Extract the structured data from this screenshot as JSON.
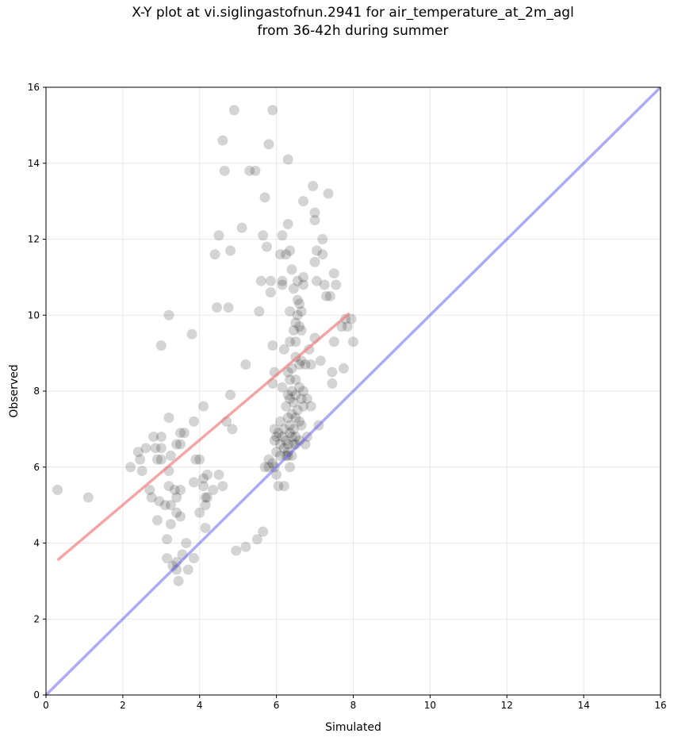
{
  "chart_data": {
    "type": "scatter",
    "title_line1": "X-Y plot at vi.siglingastofnun.2941 for air_temperature_at_2m_agl",
    "title_line2": "from 36-42h during summer",
    "xlabel": "Simulated",
    "ylabel": "Observed",
    "xlim": [
      0,
      16
    ],
    "ylim": [
      0,
      16
    ],
    "xticks": [
      0,
      2,
      4,
      6,
      8,
      10,
      12,
      14,
      16
    ],
    "yticks": [
      0,
      2,
      4,
      6,
      8,
      10,
      12,
      14,
      16
    ],
    "grid": true,
    "colors": {
      "points": "#000000",
      "fit_line": "#f08080",
      "identity_line": "#6666ee",
      "grid": "#d9d9d9"
    },
    "fit_line": {
      "x": [
        0.3,
        7.9
      ],
      "y": [
        3.55,
        10.05
      ]
    },
    "identity_line": {
      "x": [
        0,
        16
      ],
      "y": [
        0,
        16
      ]
    },
    "points": [
      [
        0.3,
        5.4
      ],
      [
        1.1,
        5.2
      ],
      [
        2.2,
        6.0
      ],
      [
        2.4,
        6.4
      ],
      [
        2.45,
        6.2
      ],
      [
        2.5,
        5.9
      ],
      [
        2.6,
        6.5
      ],
      [
        2.7,
        5.4
      ],
      [
        2.75,
        5.2
      ],
      [
        2.8,
        6.8
      ],
      [
        2.85,
        6.5
      ],
      [
        2.9,
        6.2
      ],
      [
        2.9,
        4.6
      ],
      [
        2.95,
        5.1
      ],
      [
        3.0,
        6.8
      ],
      [
        3.0,
        6.5
      ],
      [
        3.0,
        6.2
      ],
      [
        3.0,
        9.2
      ],
      [
        3.1,
        5.0
      ],
      [
        3.15,
        4.1
      ],
      [
        3.15,
        3.6
      ],
      [
        3.2,
        5.5
      ],
      [
        3.2,
        10.0
      ],
      [
        3.2,
        7.3
      ],
      [
        3.2,
        5.9
      ],
      [
        3.25,
        6.3
      ],
      [
        3.25,
        5.0
      ],
      [
        3.25,
        4.5
      ],
      [
        3.3,
        3.4
      ],
      [
        3.35,
        5.4
      ],
      [
        3.4,
        5.2
      ],
      [
        3.4,
        6.6
      ],
      [
        3.4,
        4.8
      ],
      [
        3.4,
        3.5
      ],
      [
        3.4,
        3.3
      ],
      [
        3.45,
        3.0
      ],
      [
        3.5,
        6.9
      ],
      [
        3.5,
        6.6
      ],
      [
        3.5,
        5.4
      ],
      [
        3.5,
        4.7
      ],
      [
        3.55,
        3.7
      ],
      [
        3.6,
        6.9
      ],
      [
        3.65,
        4.0
      ],
      [
        3.7,
        3.3
      ],
      [
        3.8,
        9.5
      ],
      [
        3.85,
        7.2
      ],
      [
        3.85,
        5.6
      ],
      [
        3.85,
        3.6
      ],
      [
        3.9,
        6.2
      ],
      [
        4.0,
        6.2
      ],
      [
        4.0,
        4.8
      ],
      [
        4.1,
        7.6
      ],
      [
        4.1,
        5.7
      ],
      [
        4.1,
        5.5
      ],
      [
        4.15,
        5.2
      ],
      [
        4.15,
        5.0
      ],
      [
        4.15,
        4.4
      ],
      [
        4.2,
        5.8
      ],
      [
        4.2,
        5.2
      ],
      [
        4.35,
        5.4
      ],
      [
        4.4,
        11.6
      ],
      [
        4.45,
        10.2
      ],
      [
        4.5,
        12.1
      ],
      [
        4.5,
        5.8
      ],
      [
        4.6,
        5.5
      ],
      [
        4.6,
        14.6
      ],
      [
        4.65,
        13.8
      ],
      [
        4.7,
        7.2
      ],
      [
        4.75,
        10.2
      ],
      [
        4.8,
        11.7
      ],
      [
        4.8,
        7.9
      ],
      [
        4.85,
        7.0
      ],
      [
        4.9,
        15.4
      ],
      [
        4.95,
        3.8
      ],
      [
        5.1,
        12.3
      ],
      [
        5.2,
        8.7
      ],
      [
        5.2,
        3.9
      ],
      [
        5.3,
        13.8
      ],
      [
        5.45,
        13.8
      ],
      [
        5.5,
        4.1
      ],
      [
        5.55,
        10.1
      ],
      [
        5.6,
        10.9
      ],
      [
        5.65,
        4.3
      ],
      [
        5.65,
        12.1
      ],
      [
        5.7,
        13.1
      ],
      [
        5.7,
        6.0
      ],
      [
        5.75,
        11.8
      ],
      [
        5.8,
        14.5
      ],
      [
        5.8,
        6.2
      ],
      [
        5.8,
        6.0
      ],
      [
        5.85,
        10.9
      ],
      [
        5.85,
        10.6
      ],
      [
        5.9,
        15.4
      ],
      [
        5.9,
        9.2
      ],
      [
        5.9,
        8.2
      ],
      [
        5.95,
        8.5
      ],
      [
        5.95,
        7.0
      ],
      [
        5.95,
        6.7
      ],
      [
        5.95,
        6.0
      ],
      [
        6.0,
        6.8
      ],
      [
        6.0,
        5.8
      ],
      [
        6.05,
        6.9
      ],
      [
        6.05,
        5.5
      ],
      [
        6.1,
        11.6
      ],
      [
        6.1,
        7.2
      ],
      [
        6.1,
        6.6
      ],
      [
        6.1,
        6.3
      ],
      [
        6.15,
        12.1
      ],
      [
        6.15,
        10.9
      ],
      [
        6.15,
        10.8
      ],
      [
        6.15,
        8.1
      ],
      [
        6.15,
        6.8
      ],
      [
        6.2,
        9.1
      ],
      [
        6.2,
        7.0
      ],
      [
        6.2,
        6.5
      ],
      [
        6.2,
        5.5
      ],
      [
        6.25,
        11.6
      ],
      [
        6.25,
        7.6
      ],
      [
        6.25,
        6.7
      ],
      [
        6.25,
        6.3
      ],
      [
        6.3,
        14.1
      ],
      [
        6.3,
        12.4
      ],
      [
        6.3,
        8.5
      ],
      [
        6.3,
        7.9
      ],
      [
        6.3,
        7.3
      ],
      [
        6.3,
        6.6
      ],
      [
        6.3,
        6.4
      ],
      [
        6.3,
        6.3
      ],
      [
        6.35,
        11.7
      ],
      [
        6.35,
        10.1
      ],
      [
        6.35,
        9.3
      ],
      [
        6.35,
        8.3
      ],
      [
        6.35,
        7.8
      ],
      [
        6.35,
        7.1
      ],
      [
        6.35,
        6.9
      ],
      [
        6.35,
        6.0
      ],
      [
        6.4,
        11.2
      ],
      [
        6.4,
        8.6
      ],
      [
        6.4,
        8.0
      ],
      [
        6.4,
        7.4
      ],
      [
        6.4,
        6.8
      ],
      [
        6.4,
        6.3
      ],
      [
        6.45,
        10.7
      ],
      [
        6.45,
        9.6
      ],
      [
        6.45,
        7.7
      ],
      [
        6.45,
        7.0
      ],
      [
        6.45,
        6.6
      ],
      [
        6.5,
        9.8
      ],
      [
        6.5,
        9.3
      ],
      [
        6.5,
        8.9
      ],
      [
        6.5,
        8.3
      ],
      [
        6.5,
        7.9
      ],
      [
        6.5,
        7.3
      ],
      [
        6.5,
        6.8
      ],
      [
        6.5,
        6.6
      ],
      [
        6.55,
        10.9
      ],
      [
        6.55,
        10.4
      ],
      [
        6.55,
        7.5
      ],
      [
        6.6,
        10.3
      ],
      [
        6.6,
        9.7
      ],
      [
        6.6,
        8.1
      ],
      [
        6.6,
        7.2
      ],
      [
        6.6,
        6.7
      ],
      [
        6.65,
        10.1
      ],
      [
        6.65,
        9.6
      ],
      [
        6.65,
        8.8
      ],
      [
        6.65,
        7.8
      ],
      [
        6.65,
        7.1
      ],
      [
        6.7,
        13.0
      ],
      [
        6.7,
        10.8
      ],
      [
        6.7,
        8.0
      ],
      [
        6.7,
        7.6
      ],
      [
        6.75,
        8.7
      ],
      [
        6.75,
        6.6
      ],
      [
        6.8,
        7.8
      ],
      [
        6.8,
        6.8
      ],
      [
        6.85,
        9.1
      ],
      [
        6.9,
        8.7
      ],
      [
        6.9,
        7.6
      ],
      [
        6.95,
        13.4
      ],
      [
        7.0,
        12.7
      ],
      [
        7.0,
        12.5
      ],
      [
        7.0,
        11.4
      ],
      [
        7.0,
        9.4
      ],
      [
        7.05,
        10.9
      ],
      [
        7.05,
        11.7
      ],
      [
        7.1,
        7.1
      ],
      [
        7.15,
        8.8
      ],
      [
        7.2,
        12.0
      ],
      [
        7.2,
        11.6
      ],
      [
        7.25,
        10.8
      ],
      [
        7.3,
        10.5
      ],
      [
        7.35,
        13.2
      ],
      [
        7.4,
        10.5
      ],
      [
        7.45,
        8.5
      ],
      [
        7.45,
        8.2
      ],
      [
        7.5,
        11.1
      ],
      [
        7.5,
        9.3
      ],
      [
        7.55,
        10.8
      ],
      [
        7.7,
        9.7
      ],
      [
        7.75,
        8.6
      ],
      [
        7.8,
        9.9
      ],
      [
        7.85,
        9.7
      ],
      [
        7.95,
        9.9
      ],
      [
        8.0,
        9.3
      ],
      [
        6.6,
        8.7
      ],
      [
        6.55,
        10.0
      ],
      [
        6.7,
        11.0
      ],
      [
        5.9,
        6.1
      ],
      [
        6.0,
        6.4
      ]
    ]
  }
}
